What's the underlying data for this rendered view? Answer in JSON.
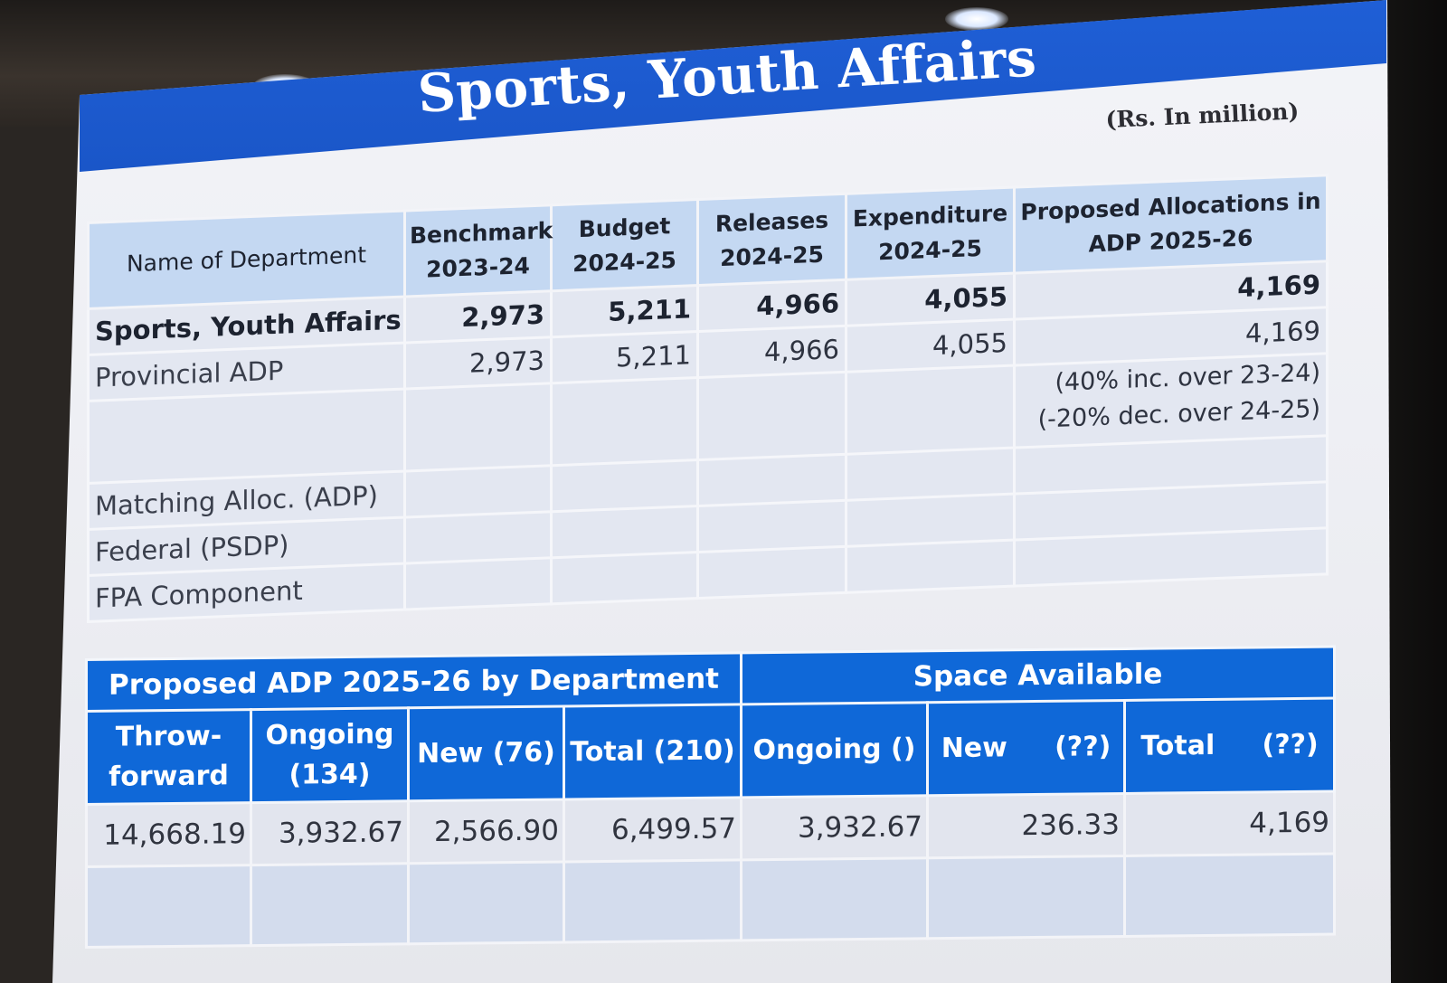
{
  "slide": {
    "title": "Sports, Youth Affairs",
    "units": "(Rs. In million)"
  },
  "top_table": {
    "headers": [
      "Name of Department",
      "Benchmark 2023-24",
      "Budget 2024-25",
      "Releases 2024-25",
      "Expenditure 2024-25",
      "Proposed Allocations in ADP 2025-26"
    ],
    "rows": [
      {
        "label": "Sports, Youth Affairs",
        "benchmark": "2,973",
        "budget": "5,211",
        "releases": "4,966",
        "expenditure": "4,055",
        "proposed": "4,169"
      },
      {
        "label": "Provincial ADP",
        "benchmark": "2,973",
        "budget": "5,211",
        "releases": "4,966",
        "expenditure": "4,055",
        "proposed": "4,169"
      },
      {
        "label": "",
        "note_line1": "(40% inc. over 23-24)",
        "note_line2": "(-20% dec. over 24-25)"
      },
      {
        "label": "Matching Alloc. (ADP)"
      },
      {
        "label": "Federal (PSDP)"
      },
      {
        "label": "FPA Component"
      }
    ]
  },
  "bottom_table": {
    "group_headers": [
      "Proposed ADP 2025-26 by Department",
      "Space Available"
    ],
    "sub_headers": [
      "Throw-forward",
      "Ongoing (134)",
      "New (76)",
      "Total (210)",
      "Ongoing ()",
      "New     (??)",
      "Total     (??)"
    ],
    "values": [
      "14,668.19",
      "3,932.67",
      "2,566.90",
      "6,499.57",
      "3,932.67",
      "236.33",
      "4,169"
    ]
  }
}
